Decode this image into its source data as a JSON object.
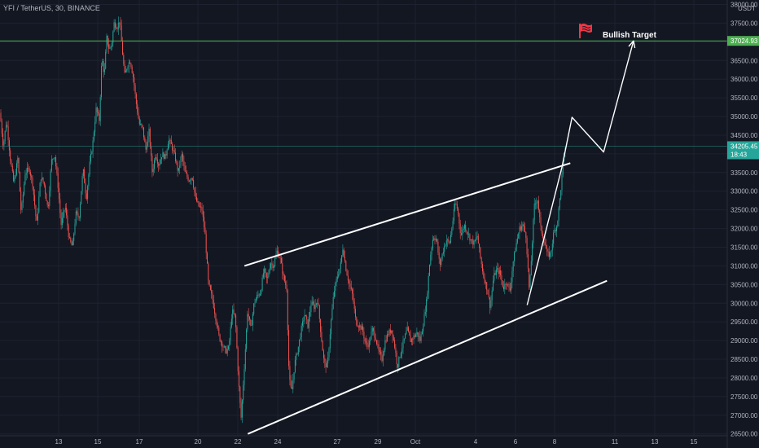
{
  "symbol": "YFI / TetherUS, 30, BINANCE",
  "currency": "USDT",
  "annotation": {
    "label": "Bullish Target",
    "icon": "flag-icon"
  },
  "colors": {
    "background": "#131722",
    "grid": "#1e2230",
    "axis_text": "#b2b5be",
    "up": "#26a69a",
    "down": "#ef5350",
    "target_line": "#4caf50",
    "current_price": "#26a69a",
    "trendline": "#ffffff",
    "flag": "#f23645"
  },
  "chart_data": {
    "type": "candlestick",
    "y_ticks": [
      "26500.00",
      "27000.00",
      "27500.00",
      "28000.00",
      "28500.00",
      "29000.00",
      "29500.00",
      "30000.00",
      "30500.00",
      "31000.00",
      "31500.00",
      "32000.00",
      "32500.00",
      "33000.00",
      "33500.00",
      "34000.00",
      "34500.00",
      "35000.00",
      "35500.00",
      "36000.00",
      "36500.00",
      "37000.00",
      "37500.00",
      "38000.00"
    ],
    "ylim": [
      26450,
      38120
    ],
    "x_ticks": [
      "13",
      "15",
      "17",
      "20",
      "22",
      "24",
      "27",
      "29",
      "Oct",
      "4",
      "6",
      "8",
      "11",
      "13",
      "15"
    ],
    "target_price": {
      "value": 37024.93,
      "label": "37024.93"
    },
    "current_price": {
      "value": 34205.45,
      "label": "34205.45",
      "countdown": "18:43"
    },
    "price_path": [
      [
        0,
        35100
      ],
      [
        4,
        34200
      ],
      [
        8,
        34900
      ],
      [
        13,
        33800
      ],
      [
        17,
        33200
      ],
      [
        22,
        33900
      ],
      [
        26,
        32400
      ],
      [
        31,
        33500
      ],
      [
        36,
        33600
      ],
      [
        40,
        33200
      ],
      [
        45,
        32100
      ],
      [
        50,
        33400
      ],
      [
        54,
        33200
      ],
      [
        59,
        32500
      ],
      [
        63,
        33800
      ],
      [
        67,
        34000
      ],
      [
        71,
        33200
      ],
      [
        75,
        32100
      ],
      [
        80,
        32600
      ],
      [
        85,
        31700
      ],
      [
        89,
        31500
      ],
      [
        93,
        32400
      ],
      [
        97,
        32300
      ],
      [
        102,
        33600
      ],
      [
        106,
        32800
      ],
      [
        110,
        33700
      ],
      [
        114,
        34300
      ],
      [
        118,
        35200
      ],
      [
        122,
        34900
      ],
      [
        125,
        36600
      ],
      [
        128,
        36100
      ],
      [
        131,
        37100
      ],
      [
        134,
        36800
      ],
      [
        137,
        36900
      ],
      [
        140,
        37500
      ],
      [
        144,
        37400
      ],
      [
        147,
        37600
      ],
      [
        150,
        36800
      ],
      [
        153,
        36100
      ],
      [
        157,
        36400
      ],
      [
        160,
        36500
      ],
      [
        164,
        36000
      ],
      [
        167,
        35400
      ],
      [
        171,
        34800
      ],
      [
        175,
        34700
      ],
      [
        179,
        34100
      ],
      [
        183,
        34600
      ],
      [
        187,
        33500
      ],
      [
        191,
        34000
      ],
      [
        195,
        33700
      ],
      [
        199,
        34000
      ],
      [
        203,
        33900
      ],
      [
        207,
        34400
      ],
      [
        211,
        34200
      ],
      [
        215,
        33900
      ],
      [
        219,
        33500
      ],
      [
        223,
        34000
      ],
      [
        227,
        33500
      ],
      [
        232,
        33300
      ],
      [
        236,
        33400
      ],
      [
        240,
        32800
      ],
      [
        244,
        32600
      ],
      [
        248,
        32500
      ],
      [
        252,
        31800
      ],
      [
        256,
        30500
      ],
      [
        261,
        30100
      ],
      [
        265,
        29600
      ],
      [
        269,
        29100
      ],
      [
        273,
        28900
      ],
      [
        277,
        28700
      ],
      [
        281,
        28800
      ],
      [
        285,
        29800
      ],
      [
        289,
        29600
      ],
      [
        293,
        27900
      ],
      [
        296,
        26900
      ],
      [
        300,
        28300
      ],
      [
        304,
        29800
      ],
      [
        308,
        29300
      ],
      [
        312,
        30000
      ],
      [
        316,
        30200
      ],
      [
        320,
        30300
      ],
      [
        324,
        30900
      ],
      [
        328,
        30600
      ],
      [
        332,
        31100
      ],
      [
        336,
        31000
      ],
      [
        340,
        31400
      ],
      [
        344,
        31200
      ],
      [
        348,
        30700
      ],
      [
        352,
        30400
      ],
      [
        355,
        28000
      ],
      [
        358,
        27600
      ],
      [
        362,
        28400
      ],
      [
        366,
        28800
      ],
      [
        370,
        29300
      ],
      [
        374,
        29700
      ],
      [
        378,
        29400
      ],
      [
        382,
        30000
      ],
      [
        386,
        29900
      ],
      [
        390,
        30100
      ],
      [
        394,
        29200
      ],
      [
        398,
        28400
      ],
      [
        402,
        28300
      ],
      [
        406,
        29400
      ],
      [
        410,
        30300
      ],
      [
        414,
        30700
      ],
      [
        418,
        31000
      ],
      [
        421,
        31500
      ],
      [
        425,
        30900
      ],
      [
        429,
        30500
      ],
      [
        433,
        30200
      ],
      [
        437,
        29500
      ],
      [
        441,
        29400
      ],
      [
        445,
        29300
      ],
      [
        449,
        28900
      ],
      [
        453,
        28900
      ],
      [
        457,
        29300
      ],
      [
        461,
        29100
      ],
      [
        465,
        28700
      ],
      [
        469,
        28500
      ],
      [
        473,
        29000
      ],
      [
        477,
        29200
      ],
      [
        481,
        29300
      ],
      [
        485,
        28800
      ],
      [
        488,
        28300
      ],
      [
        492,
        28700
      ],
      [
        496,
        29000
      ],
      [
        500,
        29300
      ],
      [
        504,
        29000
      ],
      [
        508,
        29100
      ],
      [
        512,
        29200
      ],
      [
        516,
        29000
      ],
      [
        520,
        29500
      ],
      [
        524,
        30100
      ],
      [
        528,
        31200
      ],
      [
        532,
        31800
      ],
      [
        536,
        31700
      ],
      [
        540,
        31000
      ],
      [
        544,
        31400
      ],
      [
        548,
        31700
      ],
      [
        552,
        31600
      ],
      [
        556,
        32200
      ],
      [
        559,
        32700
      ],
      [
        562,
        32500
      ],
      [
        566,
        31800
      ],
      [
        570,
        32100
      ],
      [
        574,
        31900
      ],
      [
        578,
        31700
      ],
      [
        582,
        31600
      ],
      [
        586,
        31800
      ],
      [
        590,
        31200
      ],
      [
        594,
        30700
      ],
      [
        598,
        30400
      ],
      [
        602,
        29900
      ],
      [
        606,
        30700
      ],
      [
        610,
        30900
      ],
      [
        614,
        30800
      ],
      [
        618,
        30400
      ],
      [
        622,
        30600
      ],
      [
        626,
        30300
      ],
      [
        630,
        31100
      ],
      [
        634,
        31600
      ],
      [
        638,
        32000
      ],
      [
        642,
        32100
      ],
      [
        646,
        31800
      ],
      [
        650,
        30300
      ],
      [
        653,
        31400
      ],
      [
        656,
        32600
      ],
      [
        660,
        32800
      ],
      [
        664,
        32000
      ],
      [
        668,
        31700
      ],
      [
        672,
        31300
      ],
      [
        676,
        31300
      ],
      [
        680,
        31900
      ],
      [
        684,
        32100
      ],
      [
        688,
        32900
      ],
      [
        692,
        33900
      ],
      [
        695,
        34200
      ]
    ],
    "trendlines": [
      {
        "name": "channel-upper",
        "points": [
          [
            "2021-09-22 08:00",
            31000
          ],
          [
            "2021-10-08 16:00",
            33750
          ]
        ]
      },
      {
        "name": "channel-lower",
        "points": [
          [
            "2021-09-22 12:00",
            26500
          ],
          [
            "2021-10-10 12:00",
            30600
          ]
        ]
      },
      {
        "name": "breakout-leg",
        "points": [
          [
            "2021-10-06 12:00",
            29950
          ],
          [
            "2021-10-08 06:00",
            33650
          ]
        ]
      },
      {
        "name": "projection-path",
        "points": [
          [
            "2021-10-08 06:00",
            33650
          ],
          [
            "2021-10-08 18:00",
            34980
          ],
          [
            "2021-10-10 08:00",
            34050
          ],
          [
            "2021-10-11 20:00",
            37024.93
          ]
        ]
      }
    ]
  }
}
